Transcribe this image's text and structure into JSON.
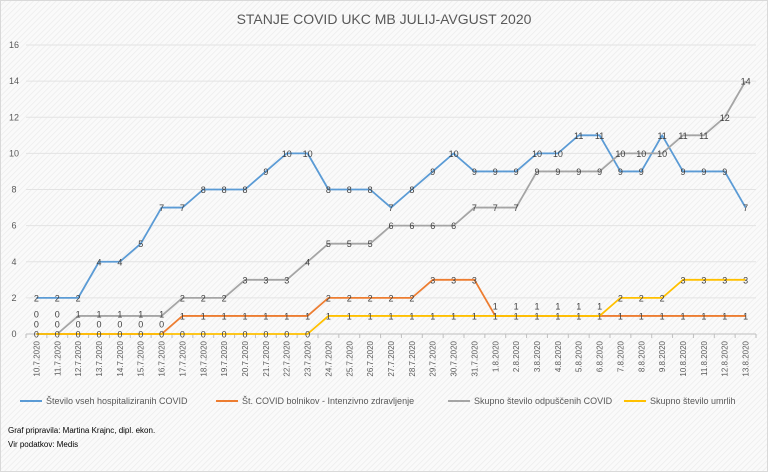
{
  "chart_data": {
    "type": "line",
    "title": "STANJE COVID UKC MB JULIJ-AVGUST 2020",
    "xlabel": "",
    "ylabel": "",
    "ylim": [
      0,
      16
    ],
    "yticks": [
      0,
      2,
      4,
      6,
      8,
      10,
      12,
      14,
      16
    ],
    "grid": true,
    "legend_position": "bottom",
    "categories": [
      "10.7.2020",
      "11.7.2020",
      "12.7.2020",
      "13.7.2020",
      "14.7.2020",
      "15.7.2020",
      "16.7.2020",
      "17.7.2020",
      "18.7.2020",
      "19.7.2020",
      "20.7.2020",
      "21.7.2020",
      "22.7.2020",
      "23.7.2020",
      "24.7.2020",
      "25.7.2020",
      "26.7.2020",
      "27.7.2020",
      "28.7.2020",
      "29.7.2020",
      "30.7.2020",
      "31.7.2020",
      "1.8.2020",
      "2.8.2020",
      "3.8.2020",
      "4.8.2020",
      "5.8.2020",
      "6.8.2020",
      "7.8.2020",
      "8.8.2020",
      "9.8.2020",
      "10.8.2020",
      "11.8.2020",
      "12.8.2020",
      "13.8.2020"
    ],
    "series": [
      {
        "name": "Število vseh hospitaliziranih COVID",
        "color": "#5b9bd5",
        "values": [
          2,
          2,
          2,
          4,
          4,
          5,
          7,
          7,
          8,
          8,
          8,
          9,
          10,
          10,
          8,
          8,
          8,
          7,
          8,
          9,
          10,
          9,
          9,
          9,
          10,
          10,
          11,
          11,
          9,
          9,
          11,
          9,
          9,
          9,
          7
        ]
      },
      {
        "name": "Št. COVID bolnikov - Intenzivno zdravljenje",
        "color": "#ed7d31",
        "values": [
          0,
          0,
          0,
          0,
          0,
          0,
          0,
          1,
          1,
          1,
          1,
          1,
          1,
          1,
          2,
          2,
          2,
          2,
          2,
          3,
          3,
          3,
          1,
          1,
          1,
          1,
          1,
          1,
          1,
          1,
          1,
          1,
          1,
          1,
          1
        ]
      },
      {
        "name": "Skupno število odpuščenih COVID",
        "color": "#a5a5a5",
        "values": [
          0,
          0,
          1,
          1,
          1,
          1,
          1,
          2,
          2,
          2,
          3,
          3,
          3,
          4,
          5,
          5,
          5,
          6,
          6,
          6,
          6,
          7,
          7,
          7,
          9,
          9,
          9,
          9,
          10,
          10,
          10,
          11,
          11,
          12,
          14
        ]
      },
      {
        "name": "Skupno število umrlih",
        "color": "#ffc000",
        "values": [
          0,
          0,
          0,
          0,
          0,
          0,
          0,
          0,
          0,
          0,
          0,
          0,
          0,
          0,
          1,
          1,
          1,
          1,
          1,
          1,
          1,
          1,
          1,
          1,
          1,
          1,
          1,
          1,
          2,
          2,
          2,
          3,
          3,
          3,
          3
        ]
      }
    ]
  },
  "footer": {
    "line1": "Graf pripravila: Martina Krajnc, dipl. ekon.",
    "line2": "Vir podatkov: Medis"
  }
}
